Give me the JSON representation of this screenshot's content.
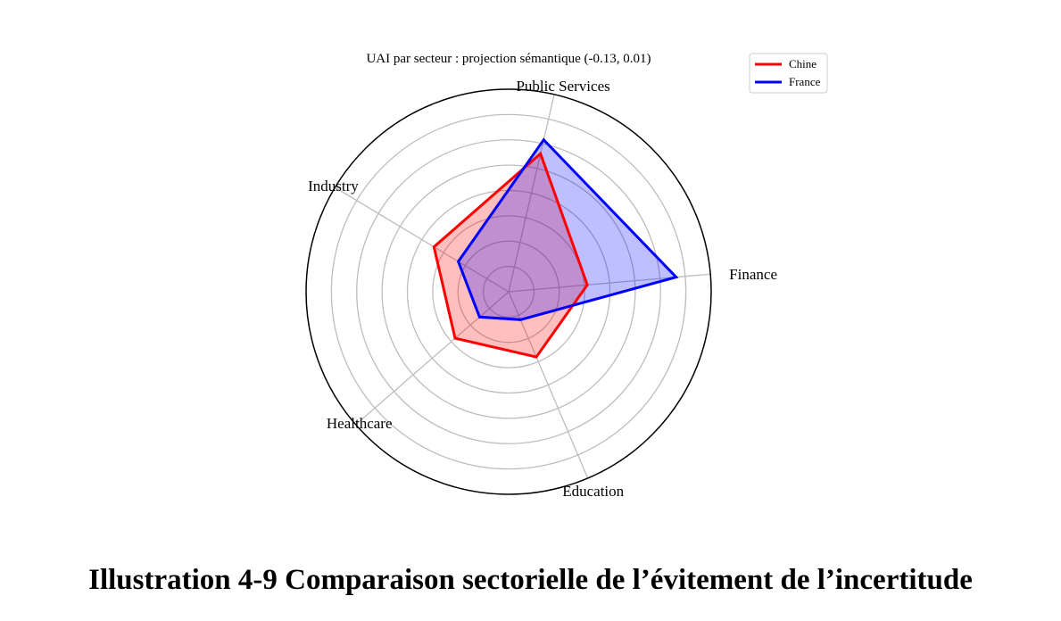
{
  "chart_data": {
    "type": "radar",
    "title": "UAI par secteur : projection sémantique (-0.13, 0.01)",
    "axes": [
      "Finance",
      "Public Services",
      "Industry",
      "Healthcare",
      "Education"
    ],
    "rmax": 1.0,
    "grid_rings": [
      0.125,
      0.25,
      0.375,
      0.5,
      0.625,
      0.75,
      0.875
    ],
    "grid": true,
    "legend_position": "top-right",
    "series": [
      {
        "name": "Chine",
        "color": "#ff0000",
        "values": [
          0.39,
          0.7,
          0.43,
          0.35,
          0.35
        ]
      },
      {
        "name": "France",
        "color": "#0000ff",
        "values": [
          0.83,
          0.77,
          0.29,
          0.19,
          0.15
        ]
      }
    ]
  },
  "caption": "Illustration 4-9 Comparaison sectorielle de l’évitement de l’incertitude"
}
